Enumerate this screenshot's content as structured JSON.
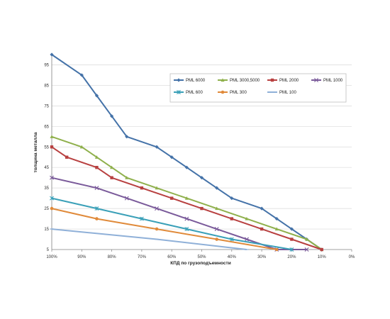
{
  "chart_data": {
    "type": "line",
    "title": "",
    "xlabel": "КПД по грузоподъемности",
    "ylabel": "толщина металла",
    "xlim": [
      100,
      0
    ],
    "ylim": [
      5,
      100
    ],
    "x_ticks": [
      "100%",
      "90%",
      "80%",
      "70%",
      "60%",
      "50%",
      "40%",
      "30%",
      "20%",
      "10%",
      "0%"
    ],
    "y_ticks": [
      "5",
      "15",
      "25",
      "35",
      "45",
      "55",
      "65",
      "75",
      "85",
      "95"
    ],
    "grid": "horizontal",
    "legend": "top-right",
    "series": [
      {
        "name": "PML 6000",
        "color": "#4472a8",
        "marker": "diamond",
        "x": [
          100,
          90,
          85,
          80,
          75,
          65,
          60,
          55,
          50,
          45,
          40,
          30,
          25,
          20,
          15,
          10
        ],
        "y": [
          100,
          90,
          80,
          70,
          60,
          55,
          50,
          45,
          40,
          35,
          30,
          25,
          20,
          15,
          10,
          5
        ]
      },
      {
        "name": "PML 3000,5000",
        "color": "#8fb04c",
        "marker": "triangle",
        "x": [
          100,
          90,
          85,
          80,
          75,
          65,
          55,
          45,
          35,
          25,
          15,
          10
        ],
        "y": [
          60,
          55,
          50,
          45,
          40,
          35,
          30,
          25,
          20,
          15,
          10,
          5
        ]
      },
      {
        "name": "PML 2000",
        "color": "#b84040",
        "marker": "square",
        "x": [
          100,
          95,
          85,
          80,
          70,
          60,
          50,
          40,
          30,
          20,
          10
        ],
        "y": [
          55,
          50,
          45,
          40,
          35,
          30,
          25,
          20,
          15,
          10,
          5
        ]
      },
      {
        "name": "PML 1000",
        "color": "#7a5a9a",
        "marker": "x",
        "x": [
          100,
          85,
          75,
          65,
          55,
          45,
          35,
          25,
          15
        ],
        "y": [
          40,
          35,
          30,
          25,
          20,
          15,
          10,
          5,
          5
        ]
      },
      {
        "name": "PML 600",
        "color": "#3aa0b8",
        "marker": "star",
        "x": [
          100,
          85,
          70,
          55,
          40,
          20
        ],
        "y": [
          30,
          25,
          20,
          15,
          10,
          5
        ]
      },
      {
        "name": "PML 300",
        "color": "#e08a3a",
        "marker": "circle",
        "x": [
          100,
          85,
          65,
          45,
          25
        ],
        "y": [
          25,
          20,
          15,
          10,
          5
        ]
      },
      {
        "name": "PML 100",
        "color": "#8fb0d8",
        "marker": "dash",
        "x": [
          100,
          65,
          35
        ],
        "y": [
          15,
          10,
          5
        ]
      }
    ]
  }
}
